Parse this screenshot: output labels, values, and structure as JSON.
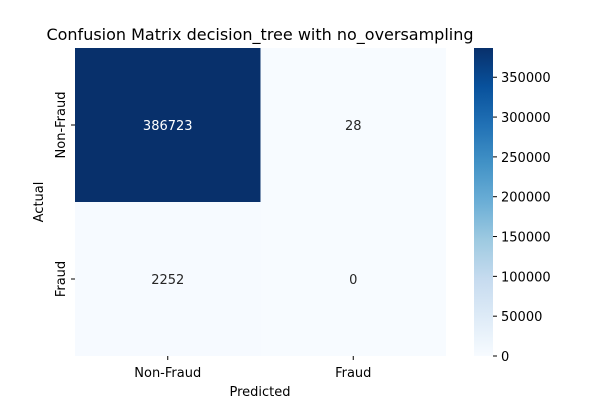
{
  "chart_data": {
    "type": "heatmap",
    "title": "Confusion Matrix decision_tree with no_oversampling",
    "xlabel": "Predicted",
    "ylabel": "Actual",
    "x_categories": [
      "Non-Fraud",
      "Fraud"
    ],
    "y_categories": [
      "Non-Fraud",
      "Fraud"
    ],
    "values": [
      [
        386723,
        28
      ],
      [
        2252,
        0
      ]
    ],
    "colormap": "Blues",
    "colorbar": {
      "vmin": 0,
      "vmax": 386723,
      "ticks": [
        0,
        50000,
        100000,
        150000,
        200000,
        250000,
        300000,
        350000
      ],
      "tick_labels": [
        "0",
        "50000",
        "100000",
        "150000",
        "200000",
        "250000",
        "300000",
        "350000"
      ]
    }
  }
}
